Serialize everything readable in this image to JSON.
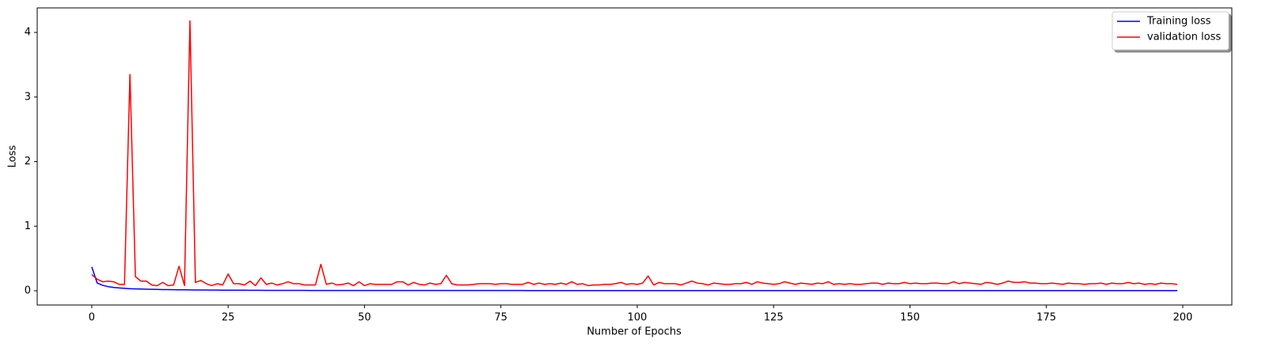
{
  "chart_data": {
    "type": "line",
    "xlabel": "Number of Epochs",
    "ylabel": "Loss",
    "x": [
      0,
      1,
      2,
      3,
      4,
      5,
      6,
      7,
      8,
      9,
      10,
      11,
      12,
      13,
      14,
      15,
      16,
      17,
      18,
      19,
      20,
      21,
      22,
      23,
      24,
      25,
      26,
      27,
      28,
      29,
      30,
      31,
      32,
      33,
      34,
      35,
      36,
      37,
      38,
      39,
      40,
      41,
      42,
      43,
      44,
      45,
      46,
      47,
      48,
      49,
      50,
      51,
      52,
      53,
      54,
      55,
      56,
      57,
      58,
      59,
      60,
      61,
      62,
      63,
      64,
      65,
      66,
      67,
      68,
      69,
      70,
      71,
      72,
      73,
      74,
      75,
      76,
      77,
      78,
      79,
      80,
      81,
      82,
      83,
      84,
      85,
      86,
      87,
      88,
      89,
      90,
      91,
      92,
      93,
      94,
      95,
      96,
      97,
      98,
      99,
      100,
      101,
      102,
      103,
      104,
      105,
      106,
      107,
      108,
      109,
      110,
      111,
      112,
      113,
      114,
      115,
      116,
      117,
      118,
      119,
      120,
      121,
      122,
      123,
      124,
      125,
      126,
      127,
      128,
      129,
      130,
      131,
      132,
      133,
      134,
      135,
      136,
      137,
      138,
      139,
      140,
      141,
      142,
      143,
      144,
      145,
      146,
      147,
      148,
      149,
      150,
      151,
      152,
      153,
      154,
      155,
      156,
      157,
      158,
      159,
      160,
      161,
      162,
      163,
      164,
      165,
      166,
      167,
      168,
      169,
      170,
      171,
      172,
      173,
      174,
      175,
      176,
      177,
      178,
      179,
      180,
      181,
      182,
      183,
      184,
      185,
      186,
      187,
      188,
      189,
      190,
      191,
      192,
      193,
      194,
      195,
      196,
      197,
      198,
      199
    ],
    "series": [
      {
        "name": "Training loss",
        "color": "#0000ff",
        "values": [
          0.37,
          0.12,
          0.085,
          0.065,
          0.052,
          0.044,
          0.038,
          0.033,
          0.03,
          0.027,
          0.025,
          0.023,
          0.021,
          0.019,
          0.018,
          0.017,
          0.016,
          0.015,
          0.014,
          0.013,
          0.012,
          0.012,
          0.011,
          0.011,
          0.01,
          0.01,
          0.009,
          0.009,
          0.009,
          0.008,
          0.008,
          0.008,
          0.007,
          0.007,
          0.007,
          0.007,
          0.006,
          0.006,
          0.006,
          0.006,
          0.005,
          0.005,
          0.005,
          0.005,
          0.005,
          0.005,
          0.005,
          0.005,
          0.005,
          0.005,
          0.005,
          0.005,
          0.005,
          0.005,
          0.005,
          0.005,
          0.005,
          0.005,
          0.005,
          0.005,
          0.005,
          0.005,
          0.005,
          0.005,
          0.005,
          0.005,
          0.005,
          0.005,
          0.005,
          0.005,
          0.005,
          0.005,
          0.005,
          0.005,
          0.005,
          0.005,
          0.005,
          0.005,
          0.005,
          0.005,
          0.004,
          0.004,
          0.004,
          0.004,
          0.004,
          0.004,
          0.004,
          0.004,
          0.004,
          0.004,
          0.004,
          0.004,
          0.004,
          0.004,
          0.004,
          0.004,
          0.004,
          0.004,
          0.004,
          0.004,
          0.004,
          0.004,
          0.004,
          0.004,
          0.004,
          0.004,
          0.004,
          0.004,
          0.004,
          0.004,
          0.004,
          0.004,
          0.004,
          0.004,
          0.004,
          0.004,
          0.004,
          0.004,
          0.004,
          0.004,
          0.004,
          0.004,
          0.004,
          0.004,
          0.004,
          0.004,
          0.004,
          0.004,
          0.004,
          0.004,
          0.004,
          0.004,
          0.004,
          0.004,
          0.004,
          0.004,
          0.004,
          0.004,
          0.004,
          0.004,
          0.003,
          0.003,
          0.003,
          0.003,
          0.003,
          0.003,
          0.003,
          0.003,
          0.003,
          0.003,
          0.003,
          0.003,
          0.003,
          0.003,
          0.003,
          0.003,
          0.003,
          0.003,
          0.003,
          0.003,
          0.003,
          0.003,
          0.003,
          0.003,
          0.003,
          0.003,
          0.003,
          0.003,
          0.003,
          0.003,
          0.003,
          0.003,
          0.003,
          0.003,
          0.003,
          0.003,
          0.003,
          0.003,
          0.003,
          0.003,
          0.003,
          0.003,
          0.003,
          0.003,
          0.003,
          0.003,
          0.003,
          0.003,
          0.003,
          0.003,
          0.003,
          0.003,
          0.003,
          0.003,
          0.003,
          0.003,
          0.003,
          0.003,
          0.003,
          0.003
        ]
      },
      {
        "name": "validation loss",
        "color": "#ff0000",
        "values": [
          0.25,
          0.18,
          0.14,
          0.15,
          0.14,
          0.1,
          0.1,
          3.35,
          0.22,
          0.15,
          0.15,
          0.09,
          0.08,
          0.13,
          0.08,
          0.09,
          0.38,
          0.08,
          4.18,
          0.13,
          0.16,
          0.11,
          0.08,
          0.11,
          0.09,
          0.26,
          0.11,
          0.11,
          0.09,
          0.15,
          0.08,
          0.2,
          0.1,
          0.12,
          0.09,
          0.11,
          0.14,
          0.11,
          0.11,
          0.09,
          0.09,
          0.09,
          0.41,
          0.1,
          0.12,
          0.09,
          0.1,
          0.12,
          0.08,
          0.14,
          0.08,
          0.11,
          0.1,
          0.1,
          0.1,
          0.1,
          0.14,
          0.14,
          0.09,
          0.13,
          0.1,
          0.09,
          0.12,
          0.1,
          0.11,
          0.24,
          0.11,
          0.09,
          0.09,
          0.09,
          0.1,
          0.11,
          0.11,
          0.11,
          0.1,
          0.11,
          0.11,
          0.1,
          0.1,
          0.1,
          0.13,
          0.1,
          0.12,
          0.1,
          0.11,
          0.1,
          0.12,
          0.1,
          0.14,
          0.1,
          0.11,
          0.08,
          0.09,
          0.09,
          0.1,
          0.1,
          0.11,
          0.13,
          0.1,
          0.11,
          0.1,
          0.12,
          0.23,
          0.09,
          0.13,
          0.11,
          0.11,
          0.11,
          0.09,
          0.12,
          0.15,
          0.12,
          0.11,
          0.09,
          0.12,
          0.11,
          0.1,
          0.1,
          0.11,
          0.11,
          0.13,
          0.1,
          0.14,
          0.12,
          0.11,
          0.1,
          0.11,
          0.14,
          0.12,
          0.1,
          0.12,
          0.11,
          0.1,
          0.12,
          0.11,
          0.14,
          0.1,
          0.11,
          0.1,
          0.11,
          0.1,
          0.1,
          0.11,
          0.12,
          0.12,
          0.1,
          0.12,
          0.11,
          0.11,
          0.13,
          0.11,
          0.12,
          0.11,
          0.11,
          0.12,
          0.12,
          0.11,
          0.11,
          0.14,
          0.11,
          0.13,
          0.12,
          0.11,
          0.1,
          0.13,
          0.12,
          0.1,
          0.12,
          0.15,
          0.13,
          0.13,
          0.14,
          0.12,
          0.12,
          0.11,
          0.11,
          0.12,
          0.11,
          0.1,
          0.12,
          0.11,
          0.11,
          0.1,
          0.11,
          0.11,
          0.12,
          0.1,
          0.12,
          0.11,
          0.11,
          0.13,
          0.11,
          0.12,
          0.1,
          0.11,
          0.1,
          0.12,
          0.11,
          0.11,
          0.1
        ]
      }
    ],
    "xlim": [
      -10,
      209
    ],
    "ylim": [
      -0.22,
      4.38
    ],
    "xticks": [
      0,
      25,
      50,
      75,
      100,
      125,
      150,
      175,
      200
    ],
    "yticks": [
      0,
      1,
      2,
      3,
      4
    ],
    "legend": "upper right"
  }
}
